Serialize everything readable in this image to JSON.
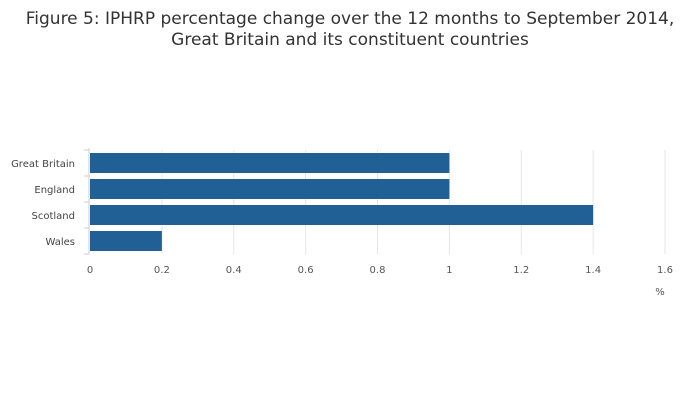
{
  "chart_data": {
    "type": "bar",
    "orientation": "horizontal",
    "title_lines": [
      "Figure 5: IPHRP percentage change over the 12 months to September 2014,",
      "Great Britain and its constituent countries"
    ],
    "categories": [
      "Great Britain",
      "England",
      "Scotland",
      "Wales"
    ],
    "values": [
      1.0,
      1.0,
      1.4,
      0.2
    ],
    "x_unit": "%",
    "xlim": [
      0,
      1.6
    ],
    "x_ticks": [
      0,
      0.2,
      0.4,
      0.6,
      0.8,
      1.0,
      1.2,
      1.4,
      1.6
    ],
    "x_tick_labels": [
      "0",
      "0.2",
      "0.4",
      "0.6",
      "0.8",
      "1",
      "1.2",
      "1.4",
      "1.6"
    ],
    "grid": "vertical",
    "legend": "none",
    "colors": {
      "bar": "#206095",
      "grid": "#e6e6e6",
      "axis": "#cccccc"
    }
  }
}
